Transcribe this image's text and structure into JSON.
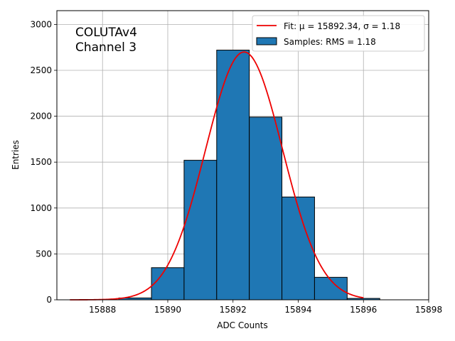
{
  "chart_data": {
    "type": "bar",
    "title": "",
    "xlabel": "ADC Counts",
    "ylabel": "Entries",
    "xlim": [
      15886.6,
      15898.0
    ],
    "ylim": [
      0,
      3150
    ],
    "grid": true,
    "legend_position": "top-right",
    "annotation": [
      "COLUTAv4",
      "Channel 3"
    ],
    "x_ticks": [
      15888,
      15890,
      15892,
      15894,
      15896,
      15898
    ],
    "x_tick_labels": [
      "15888",
      "15890",
      "15892",
      "15894",
      "15896",
      "15898"
    ],
    "y_ticks": [
      0,
      500,
      1000,
      1500,
      2000,
      2500,
      3000
    ],
    "y_tick_labels": [
      "0",
      "500",
      "1000",
      "1500",
      "2000",
      "2500",
      "3000"
    ],
    "bins": [
      {
        "left": 15888.5,
        "right": 15889.5,
        "value": 20
      },
      {
        "left": 15889.5,
        "right": 15890.5,
        "value": 350
      },
      {
        "left": 15890.5,
        "right": 15891.5,
        "value": 1520
      },
      {
        "left": 15891.5,
        "right": 15892.5,
        "value": 2720
      },
      {
        "left": 15892.5,
        "right": 15893.5,
        "value": 1990
      },
      {
        "left": 15893.5,
        "right": 15894.5,
        "value": 1120
      },
      {
        "left": 15894.5,
        "right": 15895.5,
        "value": 245
      },
      {
        "left": 15895.5,
        "right": 15896.5,
        "value": 15
      }
    ],
    "fit": {
      "mu": 15892.34,
      "sigma": 1.18,
      "amplitude": 2700,
      "x_range": [
        15887.0,
        15896.0
      ]
    },
    "series": [
      {
        "name": "Fit: μ = 15892.34, σ = 1.18",
        "type": "line",
        "color": "#ee0000"
      },
      {
        "name": "Samples: RMS = 1.18",
        "type": "bar",
        "color": "#1f77b4"
      }
    ]
  }
}
